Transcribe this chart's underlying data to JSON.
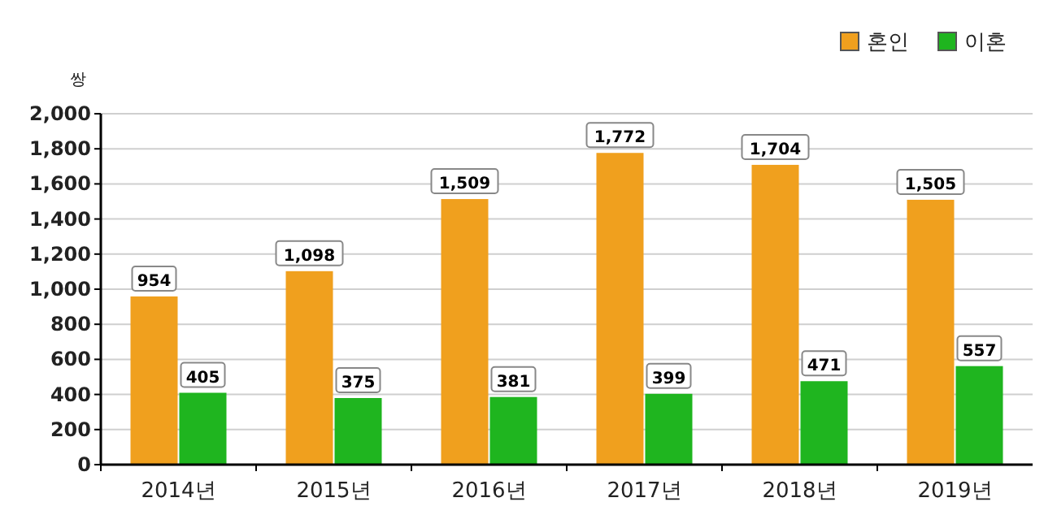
{
  "chart_data": {
    "type": "bar",
    "ylabel": "쌍",
    "categories": [
      "2014년",
      "2015년",
      "2016년",
      "2017년",
      "2018년",
      "2019년"
    ],
    "series": [
      {
        "name": "혼인",
        "color": "#f0a01e",
        "values": [
          954,
          1098,
          1509,
          1772,
          1704,
          1505
        ],
        "value_labels": [
          "954",
          "1,098",
          "1,509",
          "1,772",
          "1,704",
          "1,505"
        ]
      },
      {
        "name": "이혼",
        "color": "#1fb51f",
        "values": [
          405,
          375,
          381,
          399,
          471,
          557
        ],
        "value_labels": [
          "405",
          "375",
          "381",
          "399",
          "471",
          "557"
        ]
      }
    ],
    "ylim": [
      0,
      2000
    ],
    "yticks": [
      0,
      200,
      400,
      600,
      800,
      {
        "value": 1000,
        "label": "1,000"
      },
      {
        "value": 1200,
        "label": "1,200"
      },
      {
        "value": 1400,
        "label": "1,400"
      },
      {
        "value": 1600,
        "label": "1,600"
      },
      {
        "value": 1800,
        "label": "1,800"
      },
      {
        "value": 2000,
        "label": "2,000"
      }
    ],
    "grid": "y",
    "legend": "top right"
  }
}
